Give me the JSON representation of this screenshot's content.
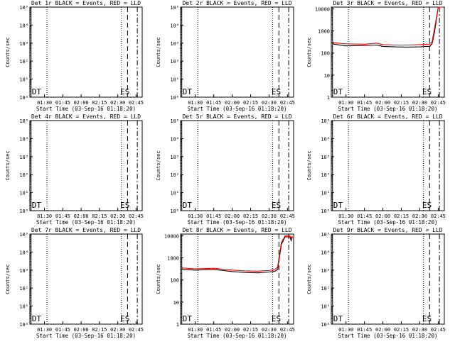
{
  "chart_data": [
    {
      "type": "line",
      "title": "Det 1r BLACK = Events, RED = LLD",
      "xlabel": "Start Time (03-Sep-16 01:18:20)",
      "ylabel": "Counts/sec",
      "x_ticks": [
        "01:30",
        "01:45",
        "02:00",
        "02:15",
        "02:30",
        "02:45"
      ],
      "yscale": "log",
      "ylim": [
        1,
        100000
      ],
      "y_ticks": [
        "10⁰",
        "10¹",
        "10²",
        "10³",
        "10⁴",
        "10⁵"
      ],
      "annotations": [
        "DT",
        "ES"
      ],
      "series": []
    },
    {
      "type": "line",
      "title": "Det 2r BLACK = Events, RED = LLD",
      "xlabel": "Start Time (03-Sep-16 01:18:20)",
      "ylabel": "Counts/sec",
      "x_ticks": [
        "01:30",
        "01:45",
        "02:00",
        "02:15",
        "02:30",
        "02:45"
      ],
      "yscale": "log",
      "ylim": [
        1,
        100000
      ],
      "y_ticks": [
        "10⁰",
        "10¹",
        "10²",
        "10³",
        "10⁴",
        "10⁵"
      ],
      "annotations": [
        "DT",
        "ES"
      ],
      "series": []
    },
    {
      "type": "line",
      "title": "Det 3r BLACK = Events, RED = LLD",
      "xlabel": "Start Time (03-Sep-16 01:18:20)",
      "ylabel": "Counts/sec",
      "x_ticks": [
        "01:30",
        "01:45",
        "02:00",
        "02:15",
        "02:30",
        "02:45"
      ],
      "yscale": "log",
      "ylim": [
        1,
        12000
      ],
      "y_ticks": [
        "1",
        "10",
        "100",
        "1000",
        "10000"
      ],
      "annotations": [
        "DT",
        "ES"
      ],
      "series": [
        {
          "color": "#000000",
          "x": [
            "01:19",
            "01:20",
            "01:30",
            "01:45",
            "01:55",
            "02:00",
            "02:10",
            "02:20",
            "02:30",
            "02:35",
            "02:38",
            "02:40",
            "02:42",
            "02:45",
            "02:48"
          ],
          "y": [
            300,
            250,
            210,
            220,
            230,
            200,
            190,
            185,
            190,
            200,
            200,
            260,
            900,
            12000,
            12000
          ]
        },
        {
          "color": "#ff0000",
          "x": [
            "01:19",
            "01:20",
            "01:30",
            "01:45",
            "01:55",
            "02:00",
            "02:10",
            "02:20",
            "02:30",
            "02:35",
            "02:38",
            "02:40",
            "02:42",
            "02:45",
            "02:48"
          ],
          "y": [
            340,
            290,
            260,
            250,
            280,
            240,
            230,
            230,
            240,
            250,
            250,
            320,
            1300,
            12000,
            12000
          ]
        }
      ]
    },
    {
      "type": "line",
      "title": "Det 4r BLACK = Events, RED = LLD",
      "xlabel": "Start Time (03-Sep-16 01:18:20)",
      "ylabel": "Counts/sec",
      "x_ticks": [
        "01:30",
        "01:45",
        "02:00",
        "02:15",
        "02:30",
        "02:45"
      ],
      "yscale": "log",
      "ylim": [
        1,
        100000
      ],
      "y_ticks": [
        "10⁰",
        "10¹",
        "10²",
        "10³",
        "10⁴",
        "10⁵"
      ],
      "annotations": [
        "DT",
        "ES"
      ],
      "series": []
    },
    {
      "type": "line",
      "title": "Det 5r BLACK = Events, RED = LLD",
      "xlabel": "Start Time (03-Sep-16 01:18:20)",
      "ylabel": "Counts/sec",
      "x_ticks": [
        "01:30",
        "01:45",
        "02:00",
        "02:15",
        "02:30",
        "02:45"
      ],
      "yscale": "log",
      "ylim": [
        1,
        100000
      ],
      "y_ticks": [
        "10⁰",
        "10¹",
        "10²",
        "10³",
        "10⁴",
        "10⁵"
      ],
      "annotations": [
        "DT",
        "ES"
      ],
      "series": []
    },
    {
      "type": "line",
      "title": "Det 6r BLACK = Events, RED = LLD",
      "xlabel": "Start Time (03-Sep-16 01:18:20)",
      "ylabel": "Counts/sec",
      "x_ticks": [
        "01:30",
        "01:45",
        "02:00",
        "02:15",
        "02:30",
        "02:45"
      ],
      "yscale": "log",
      "ylim": [
        1,
        100000
      ],
      "y_ticks": [
        "10⁰",
        "10¹",
        "10²",
        "10³",
        "10⁴",
        "10⁵"
      ],
      "annotations": [
        "DT",
        "ES"
      ],
      "series": []
    },
    {
      "type": "line",
      "title": "Det 7r BLACK = Events, RED = LLD",
      "xlabel": "Start Time (03-Sep-16 01:18:20)",
      "ylabel": "Counts/sec",
      "x_ticks": [
        "01:30",
        "01:45",
        "02:00",
        "02:15",
        "02:30",
        "02:45"
      ],
      "yscale": "log",
      "ylim": [
        1,
        100000
      ],
      "y_ticks": [
        "10⁰",
        "10¹",
        "10²",
        "10³",
        "10⁴",
        "10⁵"
      ],
      "annotations": [
        "DT",
        "ES"
      ],
      "series": []
    },
    {
      "type": "line",
      "title": "Det 8r BLACK = Events, RED = LLD",
      "xlabel": "Start Time (03-Sep-16 01:18:20)",
      "ylabel": "Counts/sec",
      "x_ticks": [
        "01:30",
        "01:45",
        "02:00",
        "02:15",
        "02:30",
        "02:45"
      ],
      "yscale": "log",
      "ylim": [
        1,
        12000
      ],
      "y_ticks": [
        "1",
        "10",
        "100",
        "1000",
        "10000"
      ],
      "annotations": [
        "DT",
        "ES"
      ],
      "series": [
        {
          "color": "#000000",
          "x": [
            "01:19",
            "01:20",
            "01:30",
            "01:45",
            "01:55",
            "02:00",
            "02:10",
            "02:20",
            "02:30",
            "02:35",
            "02:37",
            "02:40",
            "02:43",
            "02:47",
            "02:48",
            "02:49"
          ],
          "y": [
            330,
            300,
            280,
            300,
            260,
            240,
            220,
            210,
            230,
            250,
            300,
            4000,
            9000,
            9000,
            6000,
            9000
          ]
        },
        {
          "color": "#ff0000",
          "x": [
            "01:19",
            "01:20",
            "01:30",
            "01:45",
            "01:55",
            "02:00",
            "02:10",
            "02:20",
            "02:30",
            "02:35",
            "02:37",
            "02:40",
            "02:43",
            "02:47",
            "02:48",
            "02:49"
          ],
          "y": [
            380,
            350,
            320,
            340,
            300,
            280,
            260,
            250,
            270,
            300,
            380,
            5000,
            10000,
            10000,
            8000,
            10000
          ]
        }
      ]
    },
    {
      "type": "line",
      "title": "Det 9r BLACK = Events, RED = LLD",
      "xlabel": "Start Time (03-Sep-16 01:18:20)",
      "ylabel": "Counts/sec",
      "x_ticks": [
        "01:30",
        "01:45",
        "02:00",
        "02:15",
        "02:30",
        "02:45"
      ],
      "yscale": "log",
      "ylim": [
        1,
        100000
      ],
      "y_ticks": [
        "10⁰",
        "10¹",
        "10²",
        "10³",
        "10⁴",
        "10⁵"
      ],
      "annotations": [
        "DT",
        "ES"
      ],
      "series": []
    }
  ]
}
